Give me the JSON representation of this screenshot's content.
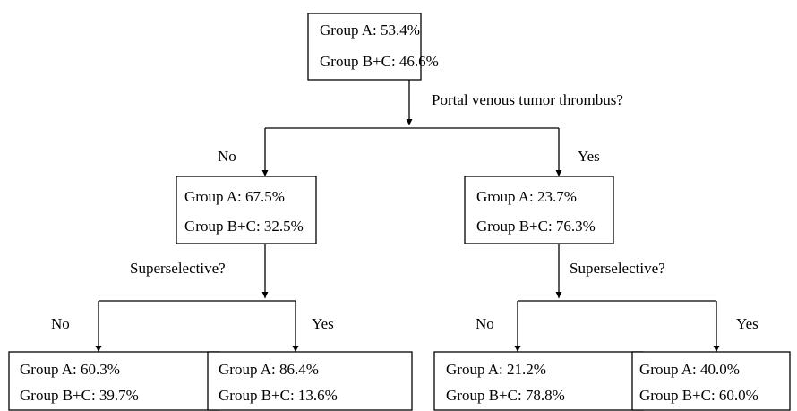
{
  "nodes": [
    {
      "lines": [
        "Group A: 53.4%",
        "Group B+C: 46.6%"
      ]
    },
    {
      "lines": [
        "Group A: 67.5%",
        "Group B+C: 32.5%"
      ]
    },
    {
      "lines": [
        "Group A: 23.7%",
        "Group B+C: 76.3%"
      ]
    },
    {
      "lines": [
        "Group A: 60.3%",
        "Group B+C: 39.7%"
      ]
    },
    {
      "lines": [
        "Group A: 86.4%",
        "Group B+C: 13.6%"
      ]
    },
    {
      "lines": [
        "Group A: 21.2%",
        "Group B+C: 78.8%"
      ]
    },
    {
      "lines": [
        "Group A: 40.0%",
        "Group B+C: 60.0%"
      ]
    }
  ],
  "questions": [
    "Portal venous tumor thrombus?",
    "Superselective?",
    "Superselective?"
  ],
  "branches": [
    {
      "no": "No",
      "yes": "Yes"
    },
    {
      "no": "No",
      "yes": "Yes"
    },
    {
      "no": "No",
      "yes": "Yes"
    }
  ]
}
